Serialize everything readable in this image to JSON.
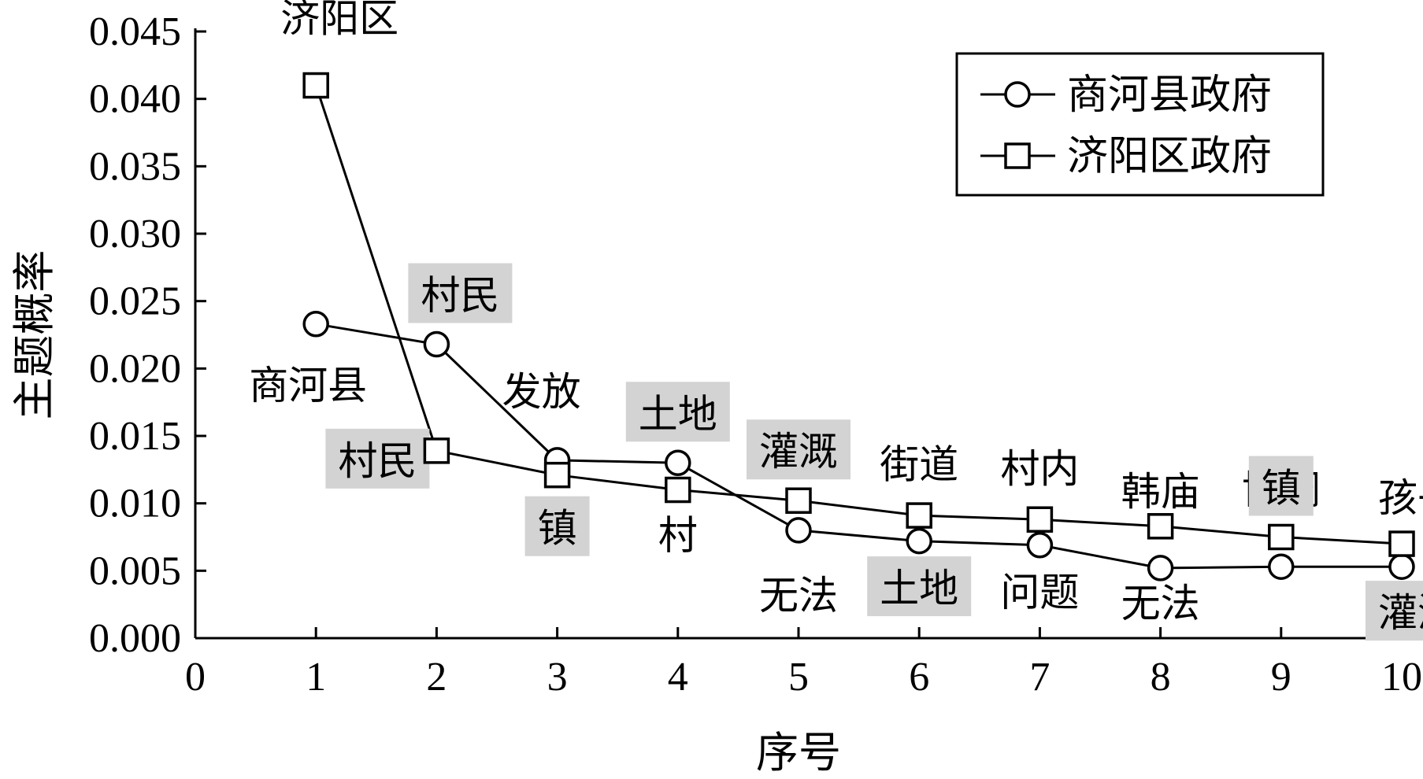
{
  "chart_data": {
    "type": "line",
    "xlabel": "序号",
    "ylabel": "主题概率",
    "xlim": [
      0,
      10
    ],
    "ylim": [
      0,
      0.045
    ],
    "x_ticks": [
      "0",
      "1",
      "2",
      "3",
      "4",
      "5",
      "6",
      "7",
      "8",
      "9",
      "10"
    ],
    "y_ticks": [
      "0.000",
      "0.005",
      "0.010",
      "0.015",
      "0.020",
      "0.025",
      "0.030",
      "0.035",
      "0.040",
      "0.045"
    ],
    "grid": false,
    "legend": {
      "position": "top-right"
    },
    "series": [
      {
        "name": "商河县政府",
        "marker": "circle",
        "x": [
          1,
          2,
          3,
          4,
          5,
          6,
          7,
          8,
          9,
          10
        ],
        "values": [
          0.0233,
          0.0218,
          0.0132,
          0.013,
          0.008,
          0.0072,
          0.0069,
          0.0052,
          0.0053,
          0.0053
        ],
        "labels": [
          "商河县",
          "村民",
          "发放",
          "土地",
          "无法",
          "街道",
          "村内",
          "韩庙",
          "协调",
          "孩子"
        ],
        "highlighted": [
          false,
          true,
          false,
          true,
          false,
          false,
          false,
          false,
          false,
          false
        ]
      },
      {
        "name": "济阳区政府",
        "marker": "square",
        "x": [
          1,
          2,
          3,
          4,
          5,
          6,
          7,
          8,
          9,
          10
        ],
        "values": [
          0.041,
          0.0139,
          0.0121,
          0.011,
          0.0102,
          0.0091,
          0.0088,
          0.0083,
          0.0075,
          0.007
        ],
        "labels": [
          "济阳区",
          "村民",
          "镇",
          "村",
          "灌溉",
          "土地",
          "问题",
          "无法",
          "镇",
          "灌溉"
        ],
        "highlighted": [
          false,
          true,
          true,
          false,
          true,
          true,
          false,
          false,
          true,
          true
        ]
      }
    ]
  }
}
